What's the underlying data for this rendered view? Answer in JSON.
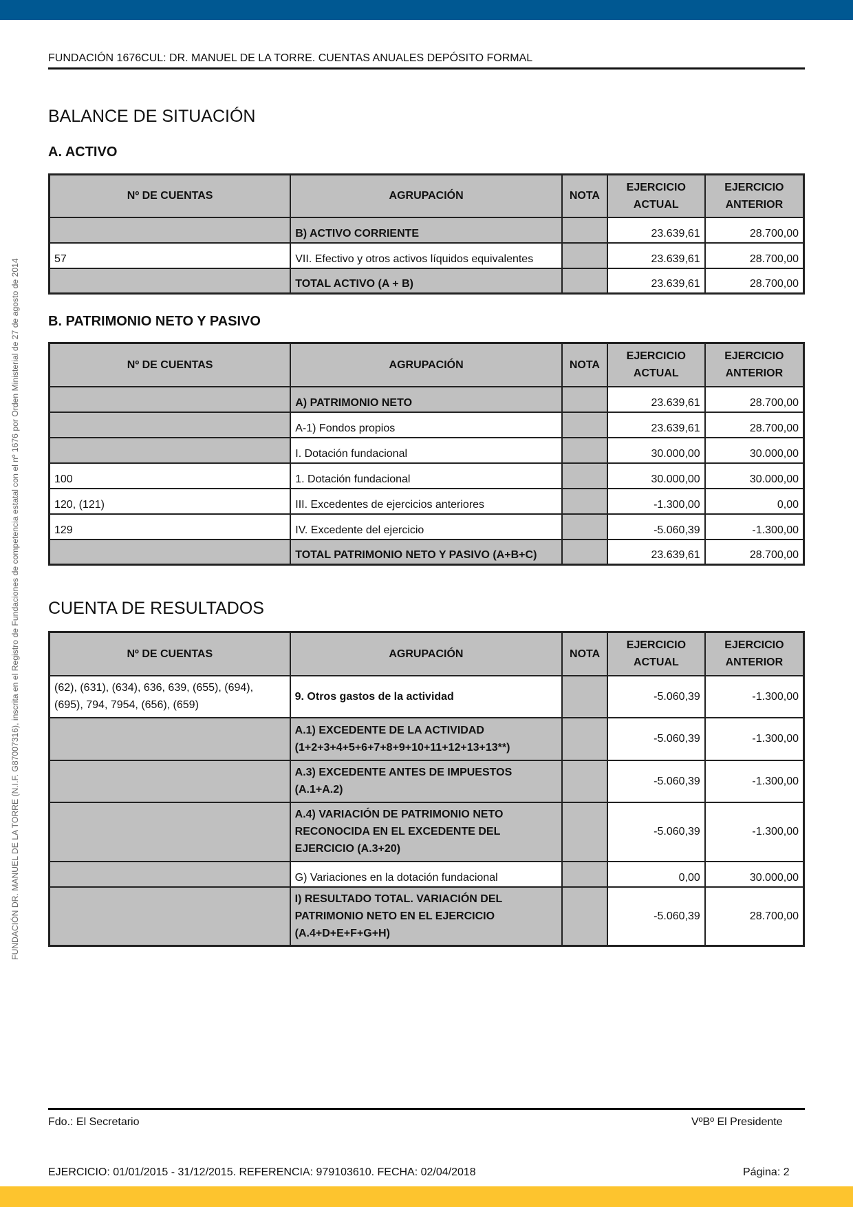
{
  "header": "FUNDACIÓN 1676CUL: DR. MANUEL DE LA TORRE. CUENTAS ANUALES DEPÓSITO FORMAL",
  "side_text": "FUNDACIÓN DR. MANUEL DE LA TORRE (N.I.F. G87007316), inscrita en el Registro de Fundaciones de competencia estatal con el nº 1676 por Orden Ministerial de 27 de agosto de 2014",
  "balance_title": "BALANCE DE SITUACIÓN",
  "activo_title": "A. ACTIVO",
  "pasivo_title": "B. PATRIMONIO NETO Y PASIVO",
  "resultados_title": "CUENTA DE RESULTADOS",
  "columns": {
    "cuentas": "Nº DE CUENTAS",
    "agrupacion": "AGRUPACIÓN",
    "nota": "NOTA",
    "actual_1": "EJERCICIO",
    "actual_2": "ACTUAL",
    "anterior_1": "EJERCICIO",
    "anterior_2": "ANTERIOR"
  },
  "activo": [
    {
      "cuentas": "",
      "agrupacion": "B) ACTIVO CORRIENTE",
      "nota": "",
      "actual": "23.639,61",
      "anterior": "28.700,00"
    },
    {
      "cuentas": "57",
      "agrupacion": "VII. Efectivo y otros activos líquidos equivalentes",
      "nota": "",
      "actual": "23.639,61",
      "anterior": "28.700,00"
    },
    {
      "cuentas": "",
      "agrupacion": "TOTAL ACTIVO (A + B)",
      "nota": "",
      "actual": "23.639,61",
      "anterior": "28.700,00"
    }
  ],
  "pasivo": [
    {
      "cuentas": "",
      "agrupacion": "A) PATRIMONIO NETO",
      "actual": "23.639,61",
      "anterior": "28.700,00"
    },
    {
      "cuentas": "",
      "agrupacion": "A-1) Fondos propios",
      "actual": "23.639,61",
      "anterior": "28.700,00"
    },
    {
      "cuentas": "",
      "agrupacion": "I. Dotación fundacional",
      "actual": "30.000,00",
      "anterior": "30.000,00"
    },
    {
      "cuentas": "100",
      "agrupacion": "1. Dotación fundacional",
      "actual": "30.000,00",
      "anterior": "30.000,00"
    },
    {
      "cuentas": "120, (121)",
      "agrupacion": "III. Excedentes de ejercicios anteriores",
      "actual": "-1.300,00",
      "anterior": "0,00"
    },
    {
      "cuentas": "129",
      "agrupacion": "IV. Excedente del ejercicio",
      "actual": "-5.060,39",
      "anterior": "-1.300,00"
    },
    {
      "cuentas": "",
      "agrupacion": "TOTAL PATRIMONIO NETO Y PASIVO (A+B+C)",
      "actual": "23.639,61",
      "anterior": "28.700,00"
    }
  ],
  "resultados": [
    {
      "cuentas_1": "(62), (631), (634), 636, 639, (655), (694),",
      "cuentas_2": "(695), 794, 7954, (656), (659)",
      "agrupacion_1": "9. Otros gastos de la actividad",
      "actual": "-5.060,39",
      "anterior": "-1.300,00"
    },
    {
      "agrupacion_1": "A.1) EXCEDENTE DE LA ACTIVIDAD",
      "agrupacion_2": "(1+2+3+4+5+6+7+8+9+10+11+12+13+13**)",
      "actual": "-5.060,39",
      "anterior": "-1.300,00"
    },
    {
      "agrupacion_1": "A.3) EXCEDENTE ANTES DE IMPUESTOS",
      "agrupacion_2": "(A.1+A.2)",
      "actual": "-5.060,39",
      "anterior": "-1.300,00"
    },
    {
      "agrupacion_1": "A.4) VARIACIÓN DE PATRIMONIO NETO",
      "agrupacion_2": "RECONOCIDA EN EL EXCEDENTE DEL",
      "agrupacion_3": "EJERCICIO (A.3+20)",
      "actual": "-5.060,39",
      "anterior": "-1.300,00"
    },
    {
      "agrupacion_1": "G) Variaciones en la dotación fundacional",
      "actual": "0,00",
      "anterior": "30.000,00"
    },
    {
      "agrupacion_1": "I) RESULTADO TOTAL. VARIACIÓN DEL",
      "agrupacion_2": "PATRIMONIO NETO EN EL EJERCICIO",
      "agrupacion_3": "(A.4+D+E+F+G+H)",
      "actual": "-5.060,39",
      "anterior": "28.700,00"
    }
  ],
  "signatures": {
    "secretario": "Fdo.: El Secretario",
    "presidente": "VºBº El Presidente"
  },
  "footer": {
    "text": "EJERCICIO: 01/01/2015 - 31/12/2015. REFERENCIA: 979103610. FECHA: 02/04/2018",
    "page": "Página: 2"
  },
  "colors": {
    "top_bar": "#005892",
    "bottom_bar": "#fdc42e",
    "shade": "#c0c0c0"
  }
}
